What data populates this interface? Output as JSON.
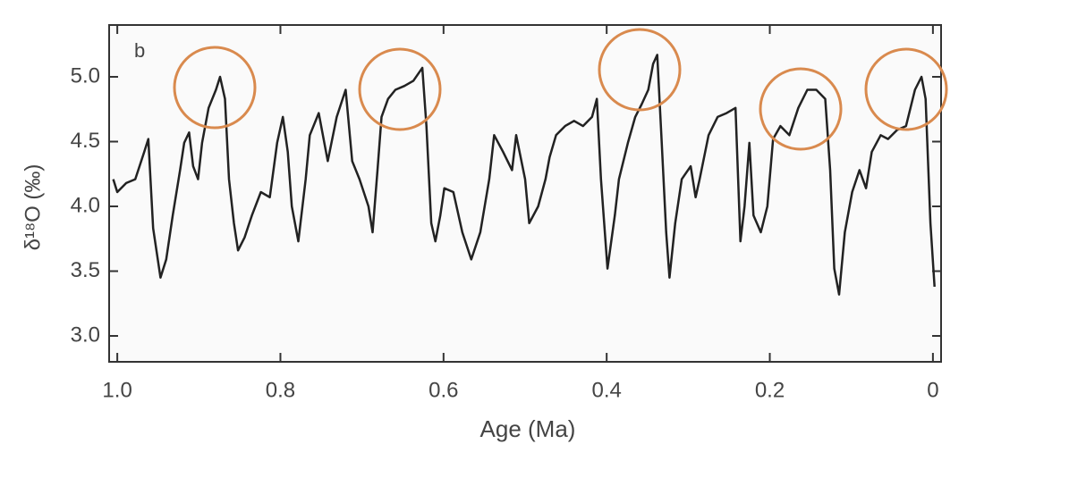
{
  "chart_data": {
    "type": "line",
    "panel_label": "b",
    "x_label": "Age (Ma)",
    "y_label": "δ¹⁸O (‰)",
    "color": "#222222",
    "xlim": [
      1.01,
      -0.01
    ],
    "ylim": [
      2.8,
      5.4
    ],
    "xticks": [
      {
        "value": 1.0,
        "label": "1.0"
      },
      0.8,
      0.6,
      0.4,
      0.2,
      0
    ],
    "yticks": [
      {
        "value": 3.0,
        "label": "3.0"
      },
      3.5,
      {
        "value": 4.0,
        "label": "4.0"
      },
      4.5,
      {
        "value": 5.0,
        "label": "5.0"
      }
    ],
    "x": [
      1.005,
      1.0,
      0.989,
      0.978,
      0.967,
      0.962,
      0.956,
      0.947,
      0.94,
      0.932,
      0.923,
      0.918,
      0.912,
      0.907,
      0.901,
      0.896,
      0.888,
      0.879,
      0.874,
      0.868,
      0.863,
      0.857,
      0.852,
      0.844,
      0.835,
      0.824,
      0.813,
      0.804,
      0.797,
      0.791,
      0.786,
      0.778,
      0.769,
      0.764,
      0.753,
      0.742,
      0.731,
      0.72,
      0.712,
      0.703,
      0.692,
      0.687,
      0.681,
      0.676,
      0.668,
      0.659,
      0.648,
      0.637,
      0.626,
      0.621,
      0.615,
      0.61,
      0.604,
      0.599,
      0.588,
      0.577,
      0.566,
      0.555,
      0.544,
      0.538,
      0.527,
      0.516,
      0.511,
      0.5,
      0.495,
      0.484,
      0.475,
      0.47,
      0.462,
      0.451,
      0.44,
      0.429,
      0.418,
      0.412,
      0.407,
      0.399,
      0.39,
      0.385,
      0.374,
      0.365,
      0.357,
      0.349,
      0.343,
      0.338,
      0.333,
      0.327,
      0.323,
      0.316,
      0.308,
      0.297,
      0.291,
      0.286,
      0.275,
      0.264,
      0.253,
      0.242,
      0.236,
      0.231,
      0.225,
      0.22,
      0.211,
      0.203,
      0.196,
      0.187,
      0.176,
      0.165,
      0.154,
      0.143,
      0.132,
      0.126,
      0.121,
      0.115,
      0.108,
      0.099,
      0.09,
      0.082,
      0.075,
      0.064,
      0.055,
      0.044,
      0.033,
      0.022,
      0.014,
      0.009,
      0.003,
      -0.002
    ],
    "values": [
      4.21,
      4.11,
      4.18,
      4.21,
      4.42,
      4.52,
      3.83,
      3.45,
      3.59,
      3.93,
      4.28,
      4.49,
      4.57,
      4.31,
      4.21,
      4.49,
      4.76,
      4.9,
      5.0,
      4.83,
      4.21,
      3.87,
      3.66,
      3.76,
      3.93,
      4.11,
      4.07,
      4.49,
      4.69,
      4.42,
      4.0,
      3.73,
      4.21,
      4.55,
      4.72,
      4.35,
      4.69,
      4.9,
      4.35,
      4.21,
      4.0,
      3.8,
      4.28,
      4.69,
      4.83,
      4.9,
      4.93,
      4.97,
      5.07,
      4.62,
      3.87,
      3.73,
      3.93,
      4.14,
      4.11,
      3.8,
      3.59,
      3.8,
      4.21,
      4.55,
      4.42,
      4.28,
      4.55,
      4.21,
      3.87,
      4.0,
      4.21,
      4.38,
      4.55,
      4.62,
      4.66,
      4.62,
      4.69,
      4.83,
      4.21,
      3.52,
      3.93,
      4.21,
      4.49,
      4.69,
      4.79,
      4.9,
      5.1,
      5.17,
      4.55,
      3.8,
      3.45,
      3.87,
      4.21,
      4.31,
      4.07,
      4.21,
      4.55,
      4.69,
      4.72,
      4.76,
      3.73,
      4.0,
      4.49,
      3.93,
      3.8,
      4.0,
      4.52,
      4.62,
      4.55,
      4.76,
      4.9,
      4.9,
      4.83,
      4.28,
      3.52,
      3.32,
      3.8,
      4.11,
      4.28,
      4.14,
      4.42,
      4.55,
      4.52,
      4.59,
      4.62,
      4.9,
      5.0,
      4.83,
      3.87,
      3.38
    ]
  }
}
